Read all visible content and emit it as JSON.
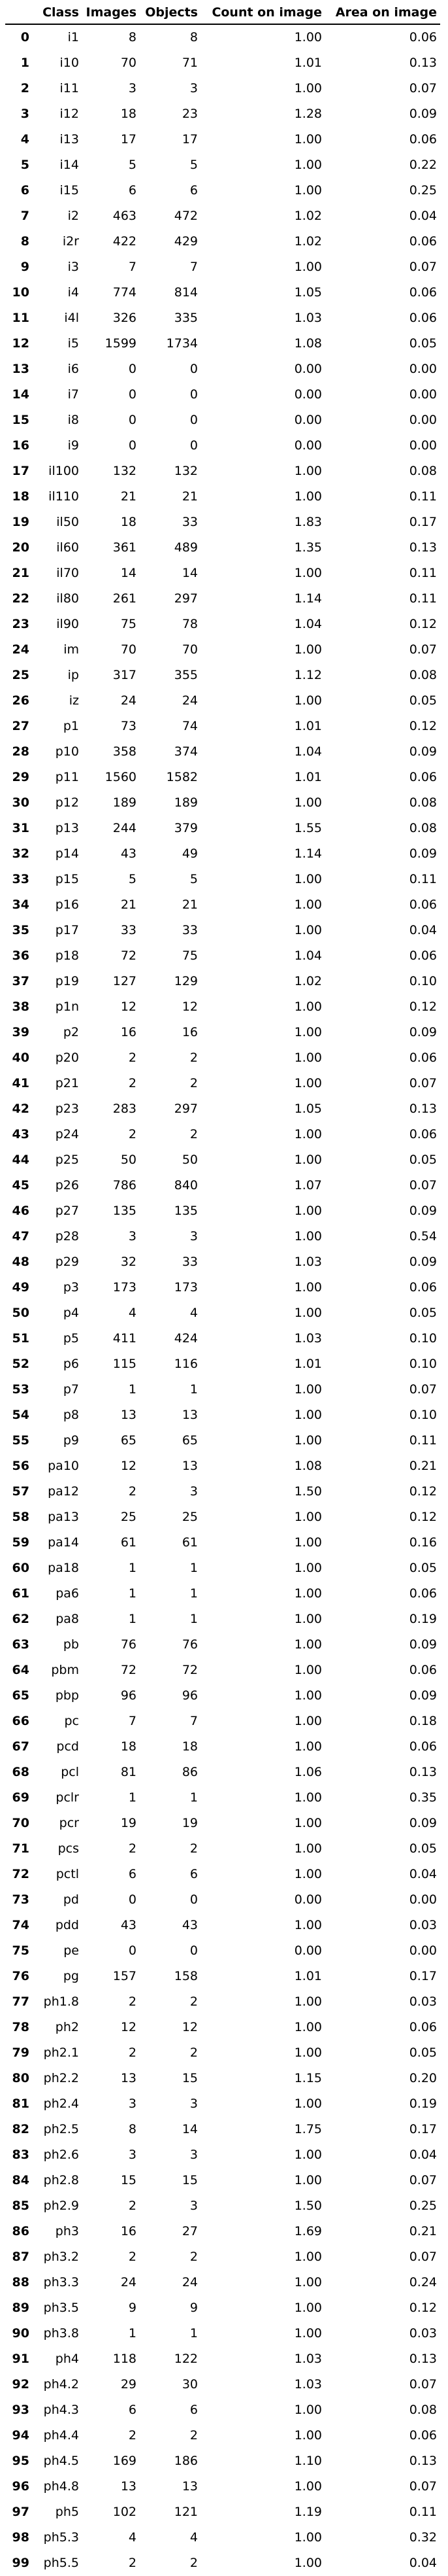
{
  "columns": [
    "",
    "Class",
    "Images",
    "Objects",
    "Count on image",
    "Area on image"
  ],
  "rows": [
    [
      "0",
      "i1",
      "8",
      "8",
      "1.00",
      "0.06"
    ],
    [
      "1",
      "i10",
      "70",
      "71",
      "1.01",
      "0.13"
    ],
    [
      "2",
      "i11",
      "3",
      "3",
      "1.00",
      "0.07"
    ],
    [
      "3",
      "i12",
      "18",
      "23",
      "1.28",
      "0.09"
    ],
    [
      "4",
      "i13",
      "17",
      "17",
      "1.00",
      "0.06"
    ],
    [
      "5",
      "i14",
      "5",
      "5",
      "1.00",
      "0.22"
    ],
    [
      "6",
      "i15",
      "6",
      "6",
      "1.00",
      "0.25"
    ],
    [
      "7",
      "i2",
      "463",
      "472",
      "1.02",
      "0.04"
    ],
    [
      "8",
      "i2r",
      "422",
      "429",
      "1.02",
      "0.06"
    ],
    [
      "9",
      "i3",
      "7",
      "7",
      "1.00",
      "0.07"
    ],
    [
      "10",
      "i4",
      "774",
      "814",
      "1.05",
      "0.06"
    ],
    [
      "11",
      "i4l",
      "326",
      "335",
      "1.03",
      "0.06"
    ],
    [
      "12",
      "i5",
      "1599",
      "1734",
      "1.08",
      "0.05"
    ],
    [
      "13",
      "i6",
      "0",
      "0",
      "0.00",
      "0.00"
    ],
    [
      "14",
      "i7",
      "0",
      "0",
      "0.00",
      "0.00"
    ],
    [
      "15",
      "i8",
      "0",
      "0",
      "0.00",
      "0.00"
    ],
    [
      "16",
      "i9",
      "0",
      "0",
      "0.00",
      "0.00"
    ],
    [
      "17",
      "il100",
      "132",
      "132",
      "1.00",
      "0.08"
    ],
    [
      "18",
      "il110",
      "21",
      "21",
      "1.00",
      "0.11"
    ],
    [
      "19",
      "il50",
      "18",
      "33",
      "1.83",
      "0.17"
    ],
    [
      "20",
      "il60",
      "361",
      "489",
      "1.35",
      "0.13"
    ],
    [
      "21",
      "il70",
      "14",
      "14",
      "1.00",
      "0.11"
    ],
    [
      "22",
      "il80",
      "261",
      "297",
      "1.14",
      "0.11"
    ],
    [
      "23",
      "il90",
      "75",
      "78",
      "1.04",
      "0.12"
    ],
    [
      "24",
      "im",
      "70",
      "70",
      "1.00",
      "0.07"
    ],
    [
      "25",
      "ip",
      "317",
      "355",
      "1.12",
      "0.08"
    ],
    [
      "26",
      "iz",
      "24",
      "24",
      "1.00",
      "0.05"
    ],
    [
      "27",
      "p1",
      "73",
      "74",
      "1.01",
      "0.12"
    ],
    [
      "28",
      "p10",
      "358",
      "374",
      "1.04",
      "0.09"
    ],
    [
      "29",
      "p11",
      "1560",
      "1582",
      "1.01",
      "0.06"
    ],
    [
      "30",
      "p12",
      "189",
      "189",
      "1.00",
      "0.08"
    ],
    [
      "31",
      "p13",
      "244",
      "379",
      "1.55",
      "0.08"
    ],
    [
      "32",
      "p14",
      "43",
      "49",
      "1.14",
      "0.09"
    ],
    [
      "33",
      "p15",
      "5",
      "5",
      "1.00",
      "0.11"
    ],
    [
      "34",
      "p16",
      "21",
      "21",
      "1.00",
      "0.06"
    ],
    [
      "35",
      "p17",
      "33",
      "33",
      "1.00",
      "0.04"
    ],
    [
      "36",
      "p18",
      "72",
      "75",
      "1.04",
      "0.06"
    ],
    [
      "37",
      "p19",
      "127",
      "129",
      "1.02",
      "0.10"
    ],
    [
      "38",
      "p1n",
      "12",
      "12",
      "1.00",
      "0.12"
    ],
    [
      "39",
      "p2",
      "16",
      "16",
      "1.00",
      "0.09"
    ],
    [
      "40",
      "p20",
      "2",
      "2",
      "1.00",
      "0.06"
    ],
    [
      "41",
      "p21",
      "2",
      "2",
      "1.00",
      "0.07"
    ],
    [
      "42",
      "p23",
      "283",
      "297",
      "1.05",
      "0.13"
    ],
    [
      "43",
      "p24",
      "2",
      "2",
      "1.00",
      "0.06"
    ],
    [
      "44",
      "p25",
      "50",
      "50",
      "1.00",
      "0.05"
    ],
    [
      "45",
      "p26",
      "786",
      "840",
      "1.07",
      "0.07"
    ],
    [
      "46",
      "p27",
      "135",
      "135",
      "1.00",
      "0.09"
    ],
    [
      "47",
      "p28",
      "3",
      "3",
      "1.00",
      "0.54"
    ],
    [
      "48",
      "p29",
      "32",
      "33",
      "1.03",
      "0.09"
    ],
    [
      "49",
      "p3",
      "173",
      "173",
      "1.00",
      "0.06"
    ],
    [
      "50",
      "p4",
      "4",
      "4",
      "1.00",
      "0.05"
    ],
    [
      "51",
      "p5",
      "411",
      "424",
      "1.03",
      "0.10"
    ],
    [
      "52",
      "p6",
      "115",
      "116",
      "1.01",
      "0.10"
    ],
    [
      "53",
      "p7",
      "1",
      "1",
      "1.00",
      "0.07"
    ],
    [
      "54",
      "p8",
      "13",
      "13",
      "1.00",
      "0.10"
    ],
    [
      "55",
      "p9",
      "65",
      "65",
      "1.00",
      "0.11"
    ],
    [
      "56",
      "pa10",
      "12",
      "13",
      "1.08",
      "0.21"
    ],
    [
      "57",
      "pa12",
      "2",
      "3",
      "1.50",
      "0.12"
    ],
    [
      "58",
      "pa13",
      "25",
      "25",
      "1.00",
      "0.12"
    ],
    [
      "59",
      "pa14",
      "61",
      "61",
      "1.00",
      "0.16"
    ],
    [
      "60",
      "pa18",
      "1",
      "1",
      "1.00",
      "0.05"
    ],
    [
      "61",
      "pa6",
      "1",
      "1",
      "1.00",
      "0.06"
    ],
    [
      "62",
      "pa8",
      "1",
      "1",
      "1.00",
      "0.19"
    ],
    [
      "63",
      "pb",
      "76",
      "76",
      "1.00",
      "0.09"
    ],
    [
      "64",
      "pbm",
      "72",
      "72",
      "1.00",
      "0.06"
    ],
    [
      "65",
      "pbp",
      "96",
      "96",
      "1.00",
      "0.09"
    ],
    [
      "66",
      "pc",
      "7",
      "7",
      "1.00",
      "0.18"
    ],
    [
      "67",
      "pcd",
      "18",
      "18",
      "1.00",
      "0.06"
    ],
    [
      "68",
      "pcl",
      "81",
      "86",
      "1.06",
      "0.13"
    ],
    [
      "69",
      "pclr",
      "1",
      "1",
      "1.00",
      "0.35"
    ],
    [
      "70",
      "pcr",
      "19",
      "19",
      "1.00",
      "0.09"
    ],
    [
      "71",
      "pcs",
      "2",
      "2",
      "1.00",
      "0.05"
    ],
    [
      "72",
      "pctl",
      "6",
      "6",
      "1.00",
      "0.04"
    ],
    [
      "73",
      "pd",
      "0",
      "0",
      "0.00",
      "0.00"
    ],
    [
      "74",
      "pdd",
      "43",
      "43",
      "1.00",
      "0.03"
    ],
    [
      "75",
      "pe",
      "0",
      "0",
      "0.00",
      "0.00"
    ],
    [
      "76",
      "pg",
      "157",
      "158",
      "1.01",
      "0.17"
    ],
    [
      "77",
      "ph1.8",
      "2",
      "2",
      "1.00",
      "0.03"
    ],
    [
      "78",
      "ph2",
      "12",
      "12",
      "1.00",
      "0.06"
    ],
    [
      "79",
      "ph2.1",
      "2",
      "2",
      "1.00",
      "0.05"
    ],
    [
      "80",
      "ph2.2",
      "13",
      "15",
      "1.15",
      "0.20"
    ],
    [
      "81",
      "ph2.4",
      "3",
      "3",
      "1.00",
      "0.19"
    ],
    [
      "82",
      "ph2.5",
      "8",
      "14",
      "1.75",
      "0.17"
    ],
    [
      "83",
      "ph2.6",
      "3",
      "3",
      "1.00",
      "0.04"
    ],
    [
      "84",
      "ph2.8",
      "15",
      "15",
      "1.00",
      "0.07"
    ],
    [
      "85",
      "ph2.9",
      "2",
      "3",
      "1.50",
      "0.25"
    ],
    [
      "86",
      "ph3",
      "16",
      "27",
      "1.69",
      "0.21"
    ],
    [
      "87",
      "ph3.2",
      "2",
      "2",
      "1.00",
      "0.07"
    ],
    [
      "88",
      "ph3.3",
      "24",
      "24",
      "1.00",
      "0.24"
    ],
    [
      "89",
      "ph3.5",
      "9",
      "9",
      "1.00",
      "0.12"
    ],
    [
      "90",
      "ph3.8",
      "1",
      "1",
      "1.00",
      "0.03"
    ],
    [
      "91",
      "ph4",
      "118",
      "122",
      "1.03",
      "0.13"
    ],
    [
      "92",
      "ph4.2",
      "29",
      "30",
      "1.03",
      "0.07"
    ],
    [
      "93",
      "ph4.3",
      "6",
      "6",
      "1.00",
      "0.08"
    ],
    [
      "94",
      "ph4.4",
      "2",
      "2",
      "1.00",
      "0.06"
    ],
    [
      "95",
      "ph4.5",
      "169",
      "186",
      "1.10",
      "0.13"
    ],
    [
      "96",
      "ph4.8",
      "13",
      "13",
      "1.00",
      "0.07"
    ],
    [
      "97",
      "ph5",
      "102",
      "121",
      "1.19",
      "0.11"
    ],
    [
      "98",
      "ph5.3",
      "4",
      "4",
      "1.00",
      "0.32"
    ],
    [
      "99",
      "ph5.5",
      "2",
      "2",
      "1.00",
      "0.04"
    ]
  ]
}
